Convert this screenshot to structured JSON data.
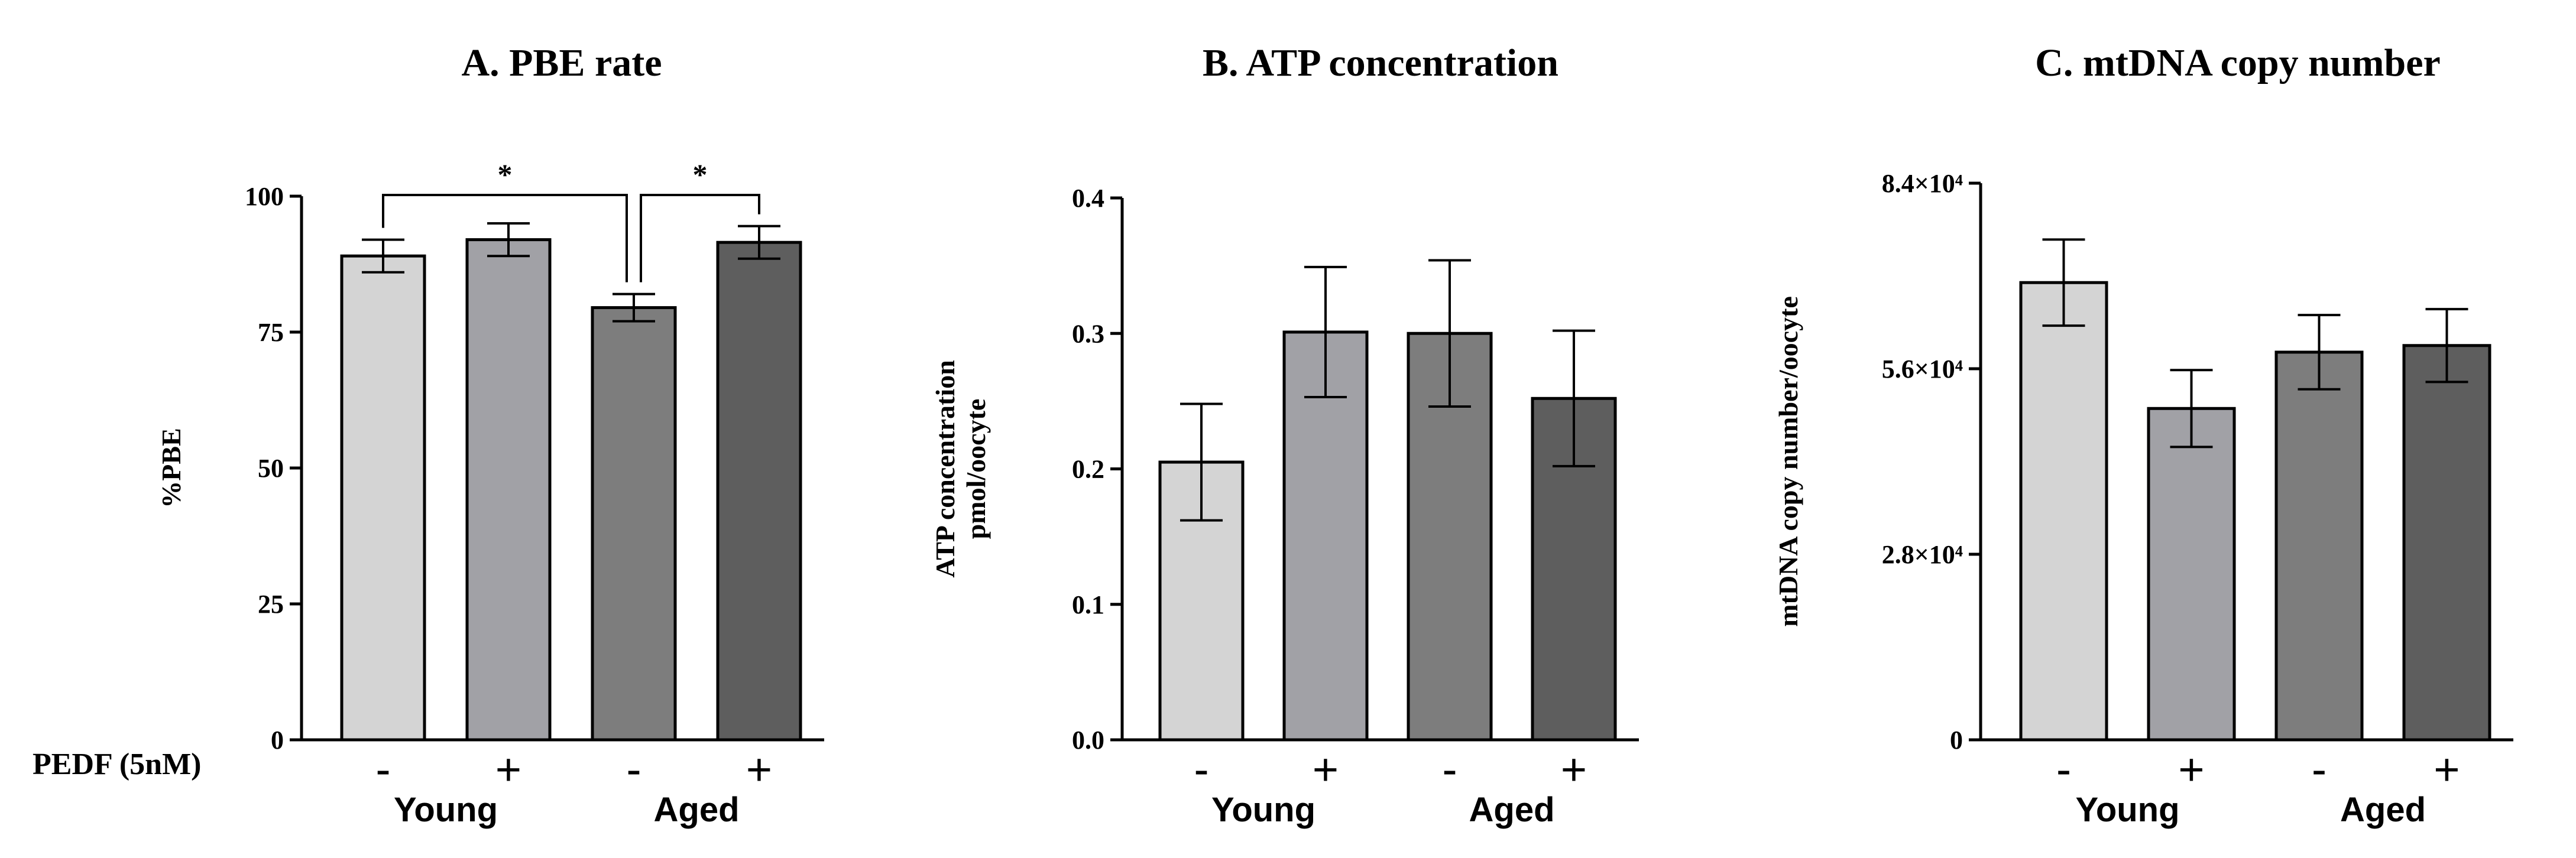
{
  "figure": {
    "row_label": "PEDF (5nM)",
    "conditions": [
      "-",
      "+",
      "-",
      "+"
    ],
    "groups": [
      "Young",
      "Aged"
    ],
    "bar_colors": [
      "#d4d4d4",
      "#a1a1a6",
      "#7d7d7d",
      "#5e5e5e"
    ]
  },
  "chart_data": [
    {
      "type": "bar",
      "title": "A.    PBE rate",
      "ylabel": "%PBE",
      "ylabel_lines": [
        "%PBE"
      ],
      "ylim": [
        0,
        100
      ],
      "ticks": [
        0,
        25,
        50,
        75,
        100
      ],
      "tick_labels": [
        "0",
        "25",
        "50",
        "75",
        "100"
      ],
      "categories": [
        "Young -",
        "Young +",
        "Aged -",
        "Aged +"
      ],
      "values": [
        89,
        92,
        79.5,
        91.5
      ],
      "errors": [
        3,
        3,
        2.5,
        3
      ],
      "significance": [
        {
          "from": 0,
          "to": 2,
          "label": "*"
        },
        {
          "from": 2,
          "to": 3,
          "label": "*"
        }
      ]
    },
    {
      "type": "bar",
      "title": "B.    ATP concentration",
      "ylabel": "ATP concentration pmol/oocyte",
      "ylabel_lines": [
        "ATP concentration",
        "pmol/oocyte"
      ],
      "ylim": [
        0,
        0.4
      ],
      "ticks": [
        0,
        0.1,
        0.2,
        0.3,
        0.4
      ],
      "tick_labels": [
        "0.0",
        "0.1",
        "0.2",
        "0.3",
        "0.4"
      ],
      "categories": [
        "Young -",
        "Young +",
        "Aged -",
        "Aged +"
      ],
      "values": [
        0.205,
        0.301,
        0.3,
        0.252
      ],
      "errors": [
        0.043,
        0.048,
        0.054,
        0.05
      ],
      "significance": []
    },
    {
      "type": "bar",
      "title": "C.    mtDNA copy number",
      "ylabel": "mtDNA copy number/oocyte",
      "ylabel_lines": [
        "mtDNA copy number/oocyte"
      ],
      "ylim": [
        0,
        84000
      ],
      "ticks": [
        0,
        28000,
        56000,
        84000
      ],
      "tick_labels": [
        "0",
        "2.8×10⁴",
        "5.6×10⁴",
        "8.4×10⁴"
      ],
      "categories": [
        "Young -",
        "Young +",
        "Aged -",
        "Aged +"
      ],
      "values": [
        69000,
        50000,
        58500,
        59500
      ],
      "errors": [
        6500,
        5800,
        5600,
        5500
      ],
      "significance": []
    }
  ]
}
